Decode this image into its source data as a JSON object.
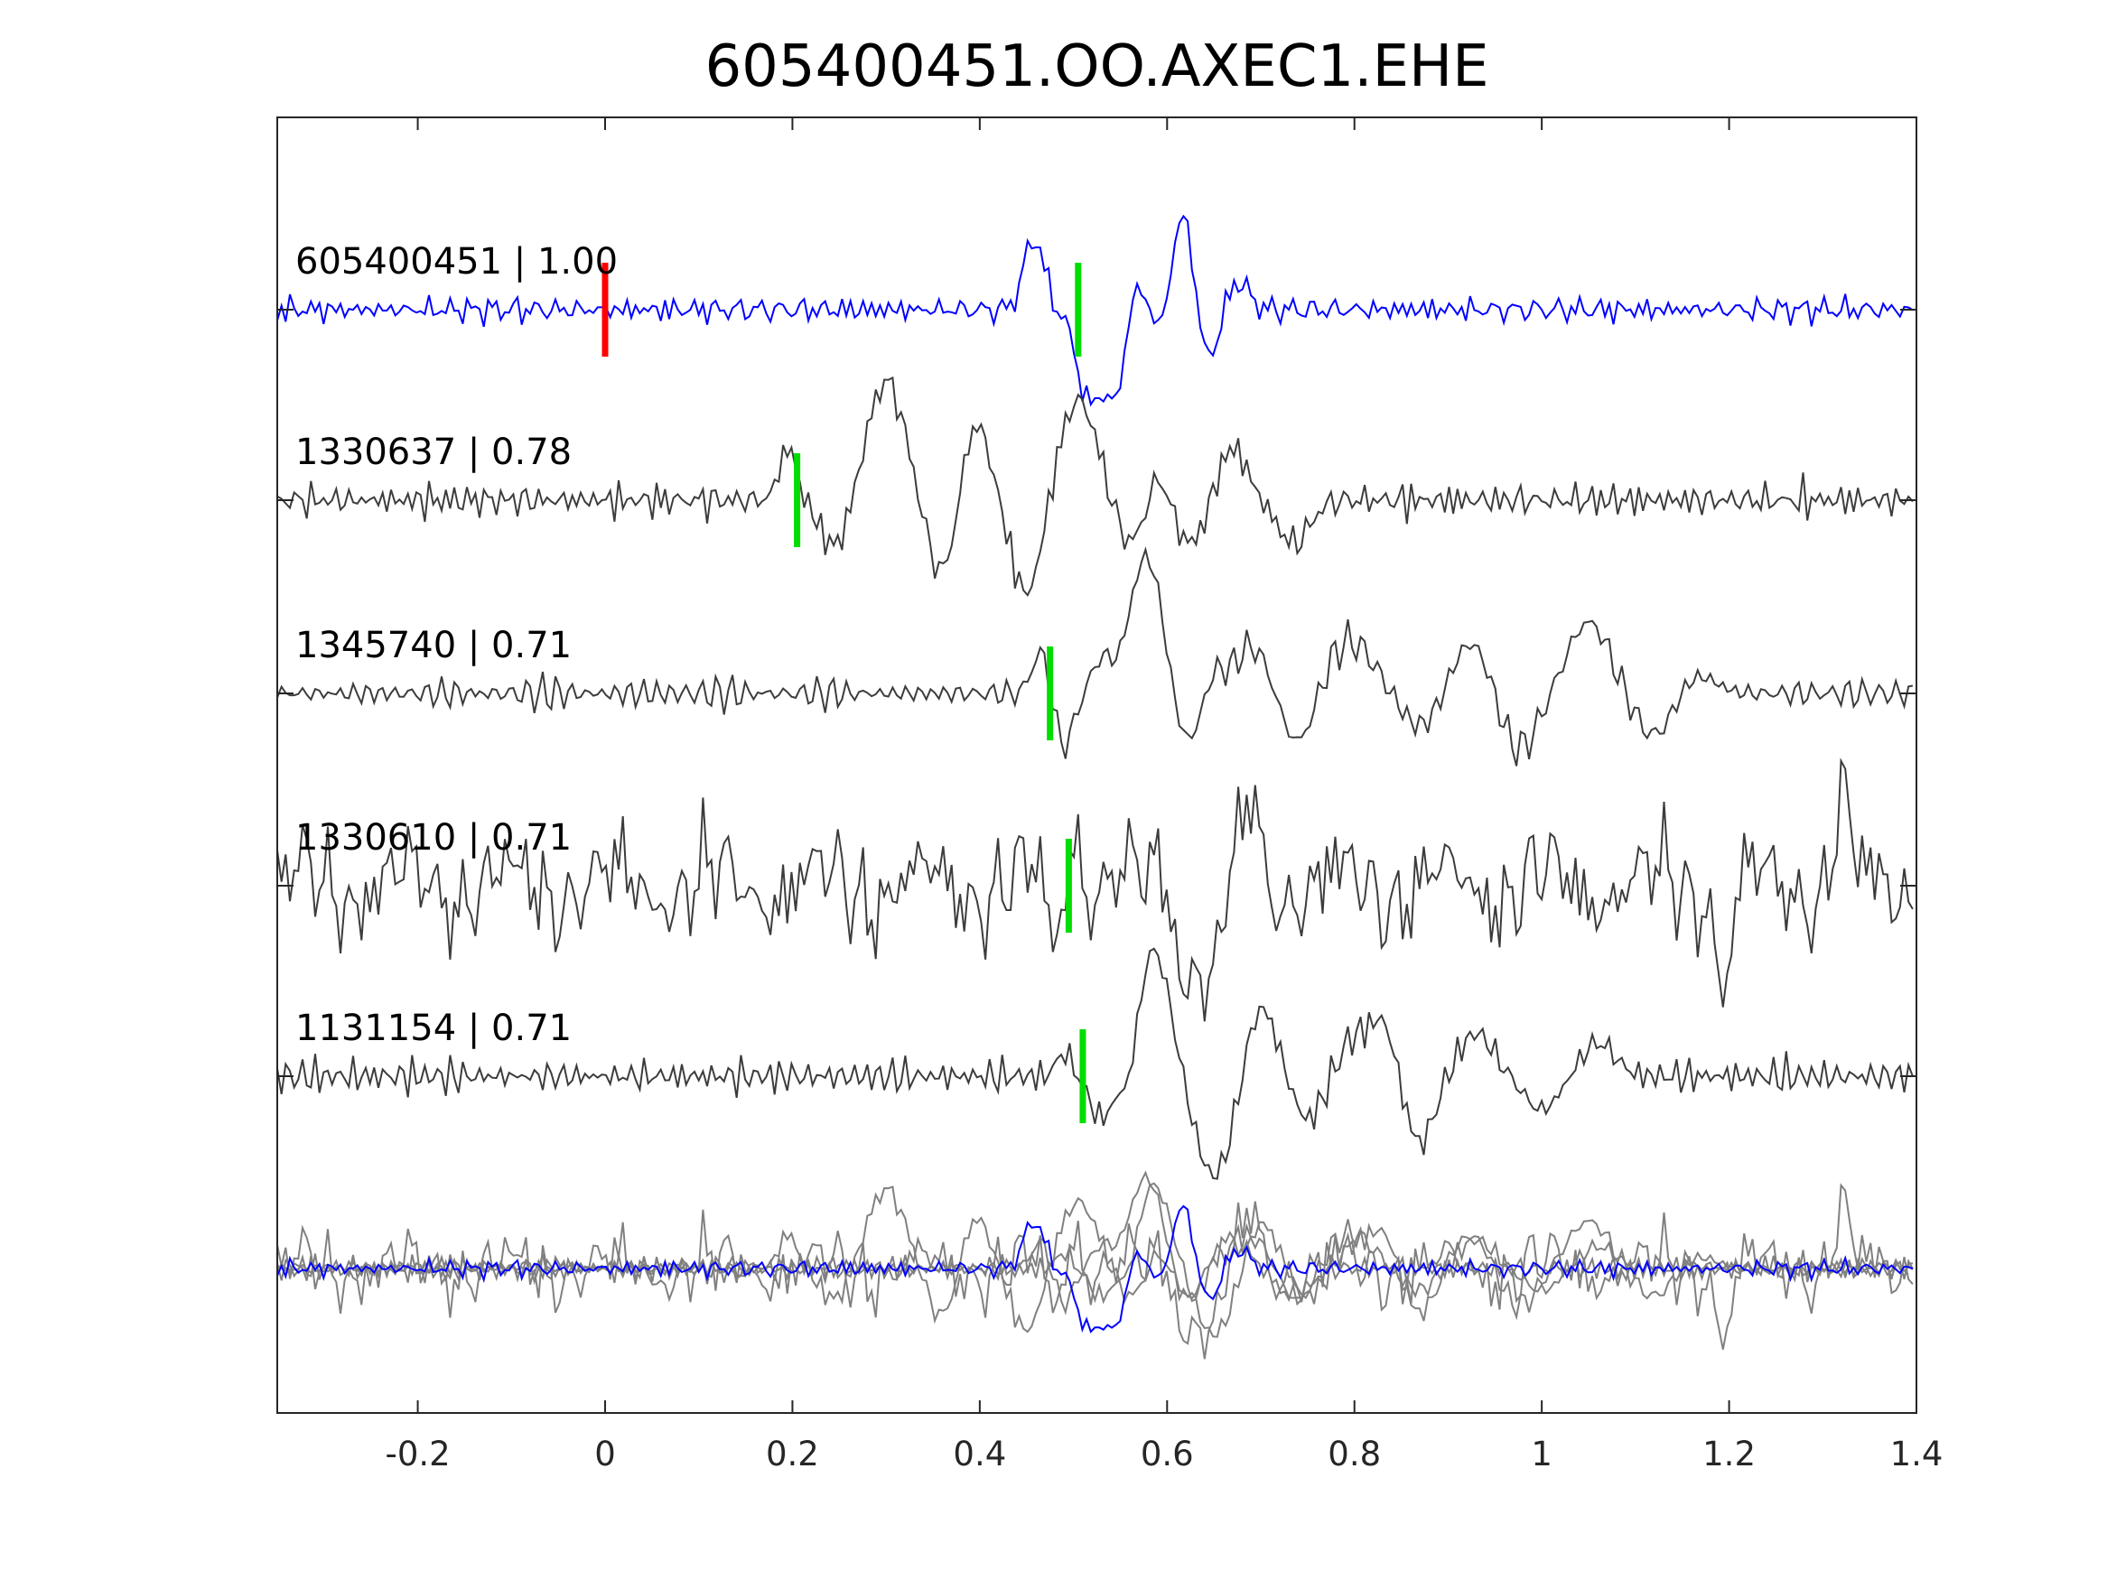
{
  "chart_data": {
    "type": "line",
    "title": "605400451.OO.AXEC1.EHE",
    "xlabel": "",
    "ylabel": "",
    "xlim": [
      -0.35,
      1.4
    ],
    "xticks": [
      -0.2,
      0,
      0.2,
      0.4,
      0.6,
      0.8,
      1,
      1.2,
      1.4
    ],
    "xtick_labels": [
      "-0.2",
      "0",
      "0.2",
      "0.4",
      "0.6",
      "0.8",
      "1",
      "1.2",
      "1.4"
    ],
    "grid": false,
    "legend": "none",
    "colors": {
      "reference": "#0000ff",
      "neighbor": "#3c3c3c",
      "stack": "#808080",
      "reference_pick": "#ff0000",
      "pick": "#00dd00",
      "axes": "#262626"
    },
    "traces": [
      {
        "label": "605400451 | 1.00",
        "id": "605400451",
        "cc": 1.0,
        "color": "#0000ff",
        "pick": 0.505,
        "ref_pick": 0.0,
        "amp": 1.0,
        "noise": 0.16,
        "noise_freq": 2.3,
        "events": [
          [
            0.455,
            0.6,
            0.01
          ],
          [
            0.465,
            0.25,
            0.008
          ],
          [
            0.515,
            -0.9,
            0.012
          ],
          [
            0.545,
            -0.95,
            0.013
          ],
          [
            0.565,
            0.45,
            0.01
          ],
          [
            0.6,
            -0.5,
            0.012
          ],
          [
            0.615,
            1.25,
            0.013
          ],
          [
            0.642,
            -0.6,
            0.012
          ],
          [
            0.675,
            0.3,
            0.012
          ]
        ]
      },
      {
        "label": "1330637 | 0.78",
        "id": "1330637",
        "cc": 0.78,
        "color": "#3c3c3c",
        "pick": 0.205,
        "amp": 1.0,
        "noise": 0.2,
        "noise_freq": 2.6,
        "events": [
          [
            0.195,
            0.55,
            0.009
          ],
          [
            0.245,
            -0.5,
            0.015
          ],
          [
            0.3,
            1.25,
            0.02
          ],
          [
            0.36,
            -0.8,
            0.016
          ],
          [
            0.395,
            0.85,
            0.015
          ],
          [
            0.45,
            -1.0,
            0.016
          ],
          [
            0.505,
            1.05,
            0.02
          ],
          [
            0.56,
            -0.45,
            0.015
          ],
          [
            0.59,
            0.3,
            0.01
          ],
          [
            0.625,
            -0.45,
            0.015
          ],
          [
            0.67,
            0.55,
            0.015
          ],
          [
            0.735,
            -0.45,
            0.017
          ]
        ]
      },
      {
        "label": "1345740 | 0.71",
        "id": "1345740",
        "cc": 0.71,
        "color": "#3c3c3c",
        "pick": 0.475,
        "amp": 1.0,
        "noise": 0.13,
        "noise_freq": 2.8,
        "events": [
          [
            0.465,
            0.45,
            0.009
          ],
          [
            0.49,
            -0.55,
            0.01
          ],
          [
            0.53,
            0.35,
            0.01
          ],
          [
            0.578,
            1.45,
            0.018
          ],
          [
            0.62,
            -0.55,
            0.015
          ],
          [
            0.65,
            0.25,
            0.01
          ],
          [
            0.69,
            0.5,
            0.018
          ],
          [
            0.74,
            -0.55,
            0.017
          ],
          [
            0.795,
            0.55,
            0.025
          ],
          [
            0.87,
            -0.35,
            0.02
          ],
          [
            0.925,
            0.55,
            0.02
          ],
          [
            0.975,
            -0.6,
            0.02
          ],
          [
            1.05,
            0.75,
            0.022
          ],
          [
            1.12,
            -0.45,
            0.02
          ],
          [
            1.165,
            0.2,
            0.02
          ]
        ]
      },
      {
        "label": "1330610 | 0.71",
        "id": "1330610",
        "cc": 0.71,
        "color": "#3c3c3c",
        "pick": 0.495,
        "amp": 1.0,
        "noise": 0.65,
        "noise_freq": 4.2,
        "events": [
          [
            0.48,
            -0.7,
            0.006
          ],
          [
            0.5,
            0.7,
            0.007
          ],
          [
            0.6,
            0.45,
            0.008
          ],
          [
            0.615,
            -0.9,
            0.01
          ],
          [
            0.645,
            -1.1,
            0.01
          ],
          [
            0.69,
            0.9,
            0.008
          ],
          [
            1.195,
            -1.1,
            0.007
          ],
          [
            1.32,
            0.95,
            0.007
          ]
        ]
      },
      {
        "label": "1131154 | 0.71",
        "id": "1131154",
        "cc": 0.71,
        "color": "#3c3c3c",
        "pick": 0.51,
        "amp": 1.0,
        "noise": 0.13,
        "noise_freq": 2.8,
        "events": [
          [
            0.49,
            0.25,
            0.008
          ],
          [
            0.53,
            -0.45,
            0.012
          ],
          [
            0.56,
            -0.45,
            0.01
          ],
          [
            0.585,
            1.35,
            0.018
          ],
          [
            0.65,
            -1.05,
            0.02
          ],
          [
            0.7,
            0.75,
            0.016
          ],
          [
            0.75,
            -0.45,
            0.015
          ],
          [
            0.8,
            0.4,
            0.015
          ],
          [
            0.83,
            0.55,
            0.013
          ],
          [
            0.87,
            -0.7,
            0.015
          ],
          [
            0.93,
            0.45,
            0.018
          ],
          [
            1.0,
            -0.35,
            0.018
          ],
          [
            1.06,
            0.35,
            0.018
          ]
        ]
      }
    ],
    "stack": {
      "label": "",
      "members": "all"
    }
  }
}
